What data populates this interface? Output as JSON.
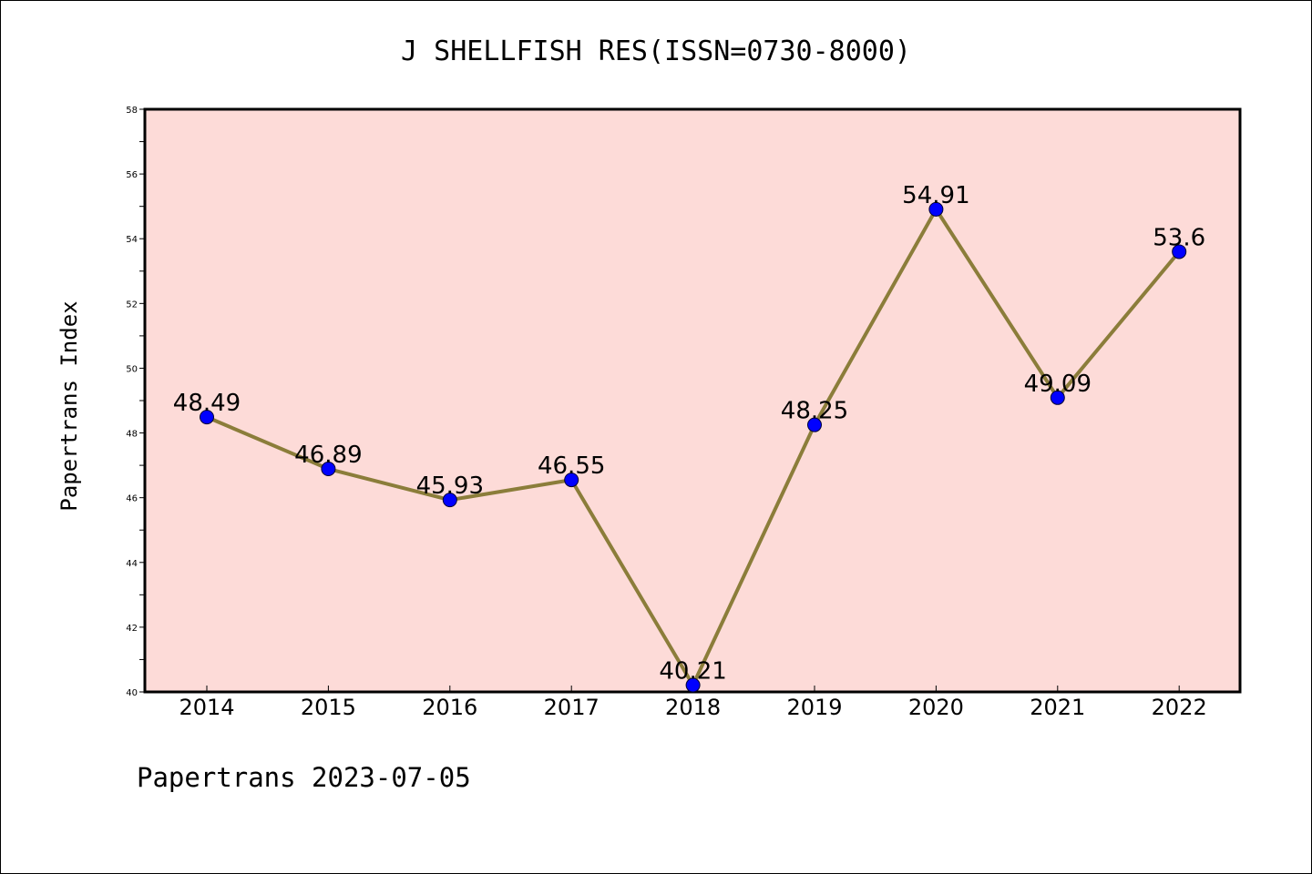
{
  "chart_data": {
    "type": "line",
    "title": "J SHELLFISH RES(ISSN=0730-8000)",
    "ylabel": "Papertrans Index",
    "xlabel": "",
    "categories": [
      "2014",
      "2015",
      "2016",
      "2017",
      "2018",
      "2019",
      "2020",
      "2021",
      "2022"
    ],
    "series": [
      {
        "values": [
          48.49,
          46.89,
          45.93,
          46.55,
          40.21,
          48.25,
          54.91,
          49.09,
          53.6
        ],
        "data_labels": [
          "48.49",
          "46.89",
          "45.93",
          "46.55",
          "40.21",
          "48.25",
          "54.91",
          "49.09",
          "53.6"
        ],
        "line_color": "#8b7d3a",
        "marker_color": "#0000ff"
      }
    ],
    "ylim": [
      40,
      58
    ],
    "yticks": [
      "40",
      "42",
      "44",
      "46",
      "48",
      "50",
      "52",
      "54",
      "56",
      "58"
    ],
    "plot_background": "#fddbd8",
    "grid": false,
    "legend": "none"
  },
  "footer": "Papertrans 2023-07-05"
}
